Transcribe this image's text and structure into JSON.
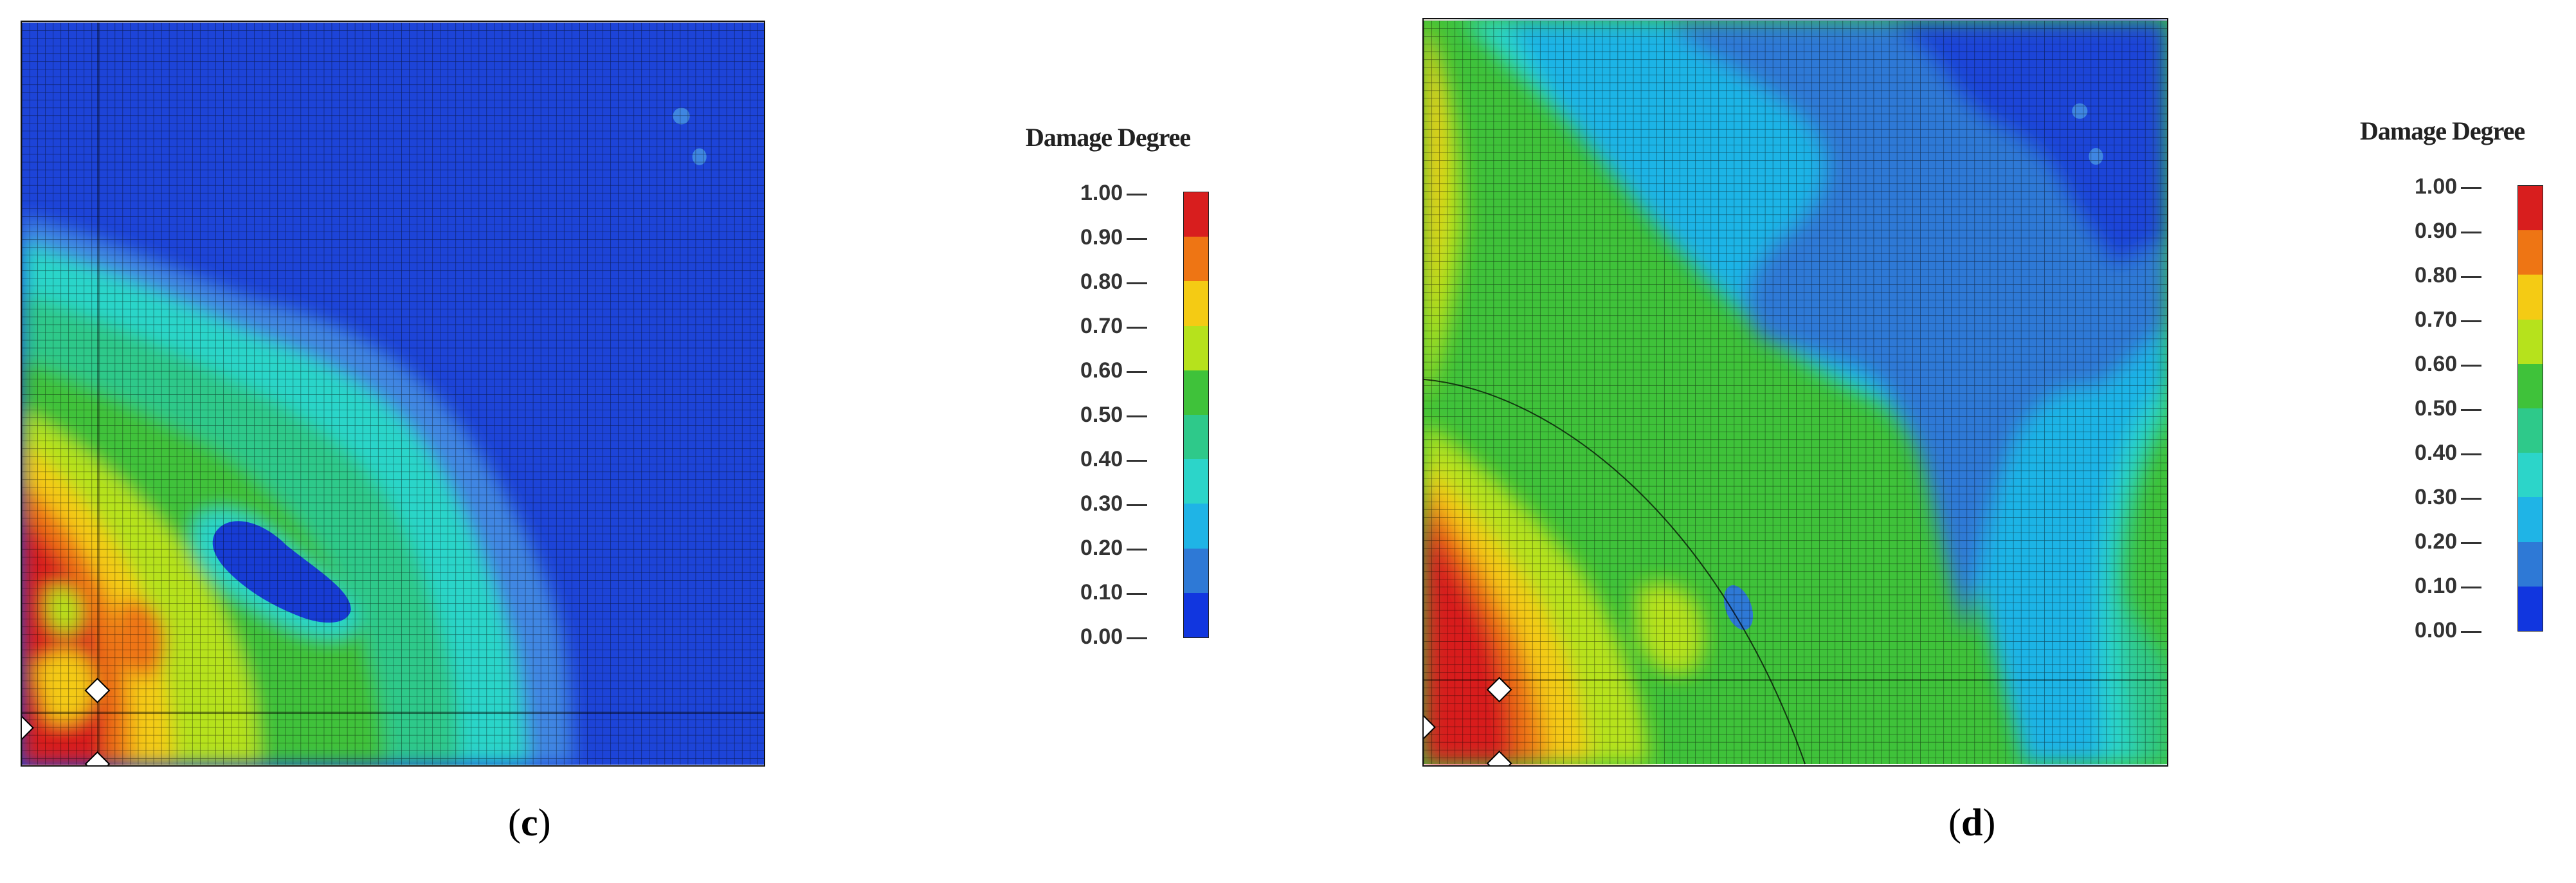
{
  "legend": {
    "title": "Damage Degree",
    "ticks": [
      "1.00",
      "0.90",
      "0.80",
      "0.70",
      "0.60",
      "0.50",
      "0.40",
      "0.30",
      "0.20",
      "0.10",
      "0.00"
    ],
    "colors": [
      "#d81e1e",
      "#ee7514",
      "#f4cb14",
      "#b6e21c",
      "#3fc23a",
      "#2ec98a",
      "#2cd5c9",
      "#1fb4e6",
      "#2e79d6",
      "#1136df"
    ]
  },
  "panels": [
    {
      "id": "c",
      "label": "c"
    },
    {
      "id": "d",
      "label": "d"
    }
  ],
  "colors": {
    "background_blue": "#1d44d8",
    "deep_blue": "#173cd4",
    "light_blue": "#3f86e2",
    "mesh_line": "#000000"
  }
}
